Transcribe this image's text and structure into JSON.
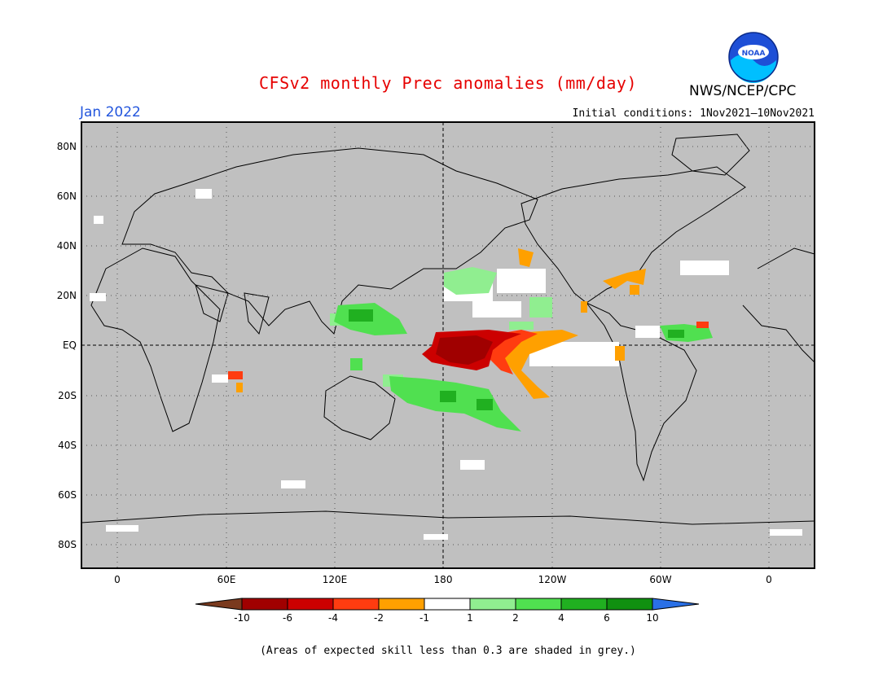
{
  "header": {
    "title": "CFSv2 monthly Prec anomalies (mm/day)",
    "org": "NWS/NCEP/CPC",
    "month": "Jan 2022",
    "initial_conditions": "Initial conditions: 1Nov2021–10Nov2021"
  },
  "logo": {
    "text": "NOAA"
  },
  "map": {
    "lat_labels": [
      "80N",
      "60N",
      "40N",
      "20N",
      "EQ",
      "20S",
      "40S",
      "60S",
      "80S"
    ],
    "lon_labels": [
      "0",
      "60E",
      "120E",
      "180",
      "120W",
      "60W",
      "0"
    ]
  },
  "colorbar": {
    "labels": [
      "-10",
      "-6",
      "-4",
      "-2",
      "-1",
      "1",
      "2",
      "4",
      "6",
      "10"
    ],
    "colors": [
      "#7a3a1e",
      "#a00000",
      "#cc0000",
      "#ff3c10",
      "#ffa000",
      "#ffffff",
      "#90ee90",
      "#50e050",
      "#20b020",
      "#109010",
      "#2a70e6"
    ]
  },
  "footnote": "(Areas of expected skill less than 0.3 are shaded in grey.)"
}
